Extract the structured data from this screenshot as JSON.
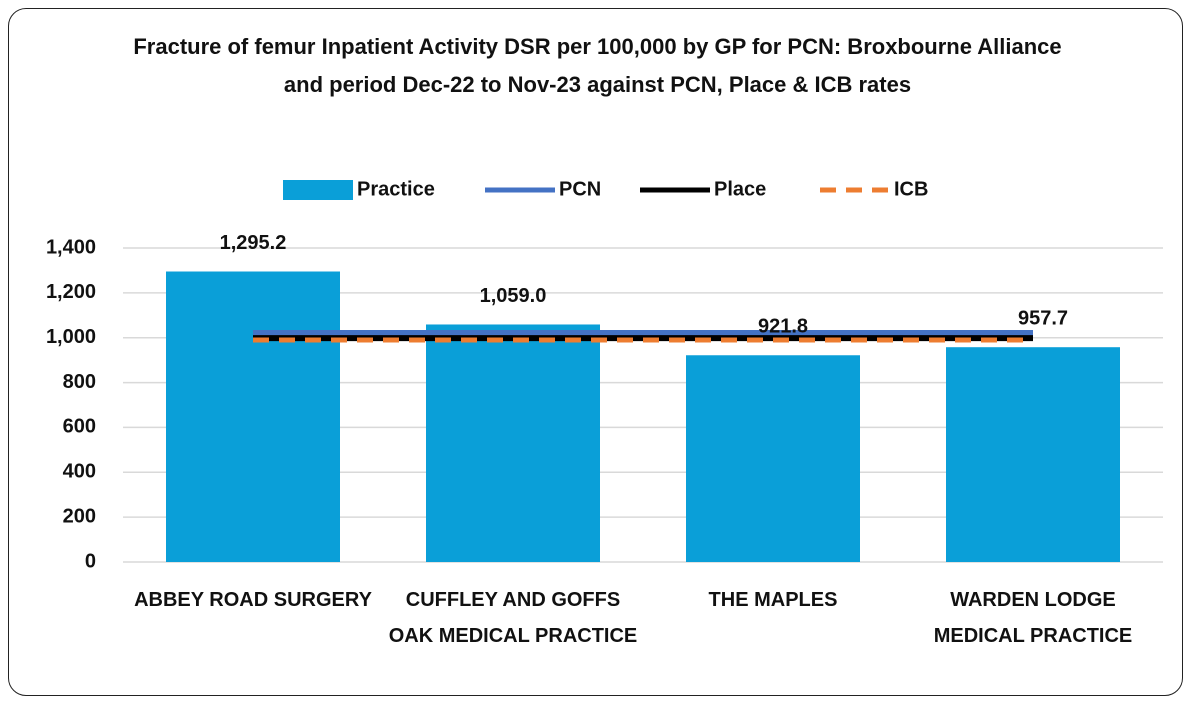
{
  "chart_data": {
    "type": "bar",
    "title": "Fracture of femur Inpatient Activity DSR per 100,000 by GP for PCN: Broxbourne Alliance and period Dec-22 to Nov-23 against PCN, Place & ICB rates",
    "categories": [
      "ABBEY ROAD SURGERY",
      "CUFFLEY AND GOFFS OAK MEDICAL PRACTICE",
      "THE MAPLES",
      "WARDEN LODGE MEDICAL PRACTICE"
    ],
    "series": [
      {
        "name": "Practice",
        "type": "bar",
        "color": "#0a9fd8",
        "values": [
          1295.2,
          1059.0,
          921.8,
          957.7
        ],
        "value_labels": [
          "1,295.2",
          "1,059.0",
          "921.8",
          "957.7"
        ]
      },
      {
        "name": "PCN",
        "type": "line",
        "color": "#4472c4",
        "values": [
          1021,
          1021,
          1021,
          1021
        ]
      },
      {
        "name": "Place",
        "type": "line",
        "color": "#000000",
        "values": [
          998,
          998,
          998,
          998
        ]
      },
      {
        "name": "ICB",
        "type": "line",
        "color": "#ed7d31",
        "dashed": true,
        "values": [
          990,
          990,
          990,
          990
        ]
      }
    ],
    "ylim": [
      0,
      1400
    ],
    "yticks": [
      0,
      200,
      400,
      600,
      800,
      {
        "value": 1000,
        "label": "1,000"
      },
      {
        "value": 1200,
        "label": "1,200"
      },
      {
        "value": 1400,
        "label": "1,400"
      }
    ],
    "grid": true,
    "legend": "top"
  }
}
